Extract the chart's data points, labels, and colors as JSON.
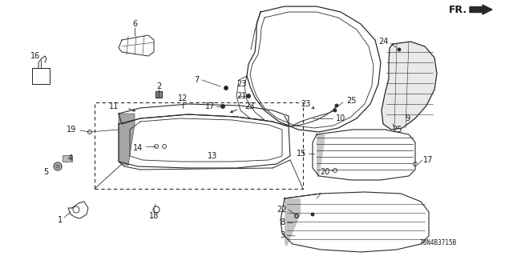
{
  "bg_color": "#ffffff",
  "diagram_code": "T8N4B3715B",
  "line_color": "#2a2a2a",
  "text_color": "#1a1a1a",
  "font_size_label": 7,
  "font_size_code": 5.5
}
